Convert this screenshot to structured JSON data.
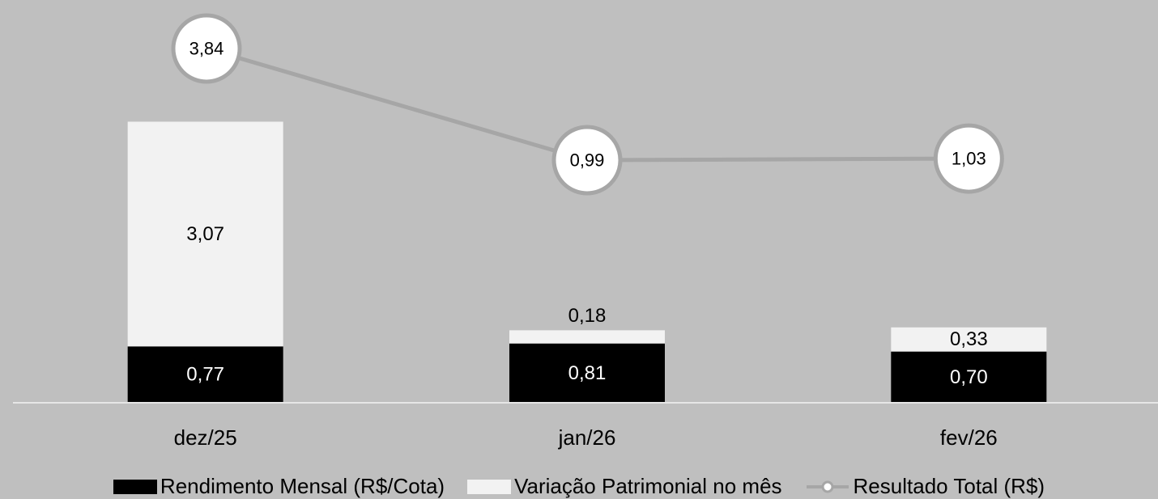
{
  "chart_data": {
    "type": "bar",
    "stacked": true,
    "categories": [
      "dez/25",
      "jan/26",
      "fev/26"
    ],
    "series": [
      {
        "name": "Rendimento Mensal (R$/Cota)",
        "kind": "bar",
        "values": [
          0.77,
          0.81,
          0.7
        ],
        "labels": [
          "0,77",
          "0,81",
          "0,70"
        ],
        "color": "#000000",
        "label_color": "#ffffff"
      },
      {
        "name": "Variação Patrimonial no mês",
        "kind": "bar",
        "values": [
          3.07,
          0.18,
          0.33
        ],
        "labels": [
          "3,07",
          "0,18",
          "0,33"
        ],
        "color": "#f2f2f2",
        "label_color": "#000000"
      },
      {
        "name": "Resultado Total (R$)",
        "kind": "line",
        "values": [
          3.84,
          0.99,
          1.03
        ],
        "labels": [
          "3,84",
          "0,99",
          "1,03"
        ],
        "color": "#a6a6a6",
        "marker_fill": "#ffffff",
        "label_color": "#000000"
      }
    ],
    "ylim": [
      0,
      4.4
    ],
    "grid": false,
    "legend": "bottom",
    "background": "#bfbfbf",
    "title": "",
    "xlabel": "",
    "ylabel": ""
  },
  "legend": {
    "items": [
      {
        "label": "Rendimento Mensal (R$/Cota)"
      },
      {
        "label": "Variação Patrimonial no mês"
      },
      {
        "label": "Resultado Total (R$)"
      }
    ]
  }
}
